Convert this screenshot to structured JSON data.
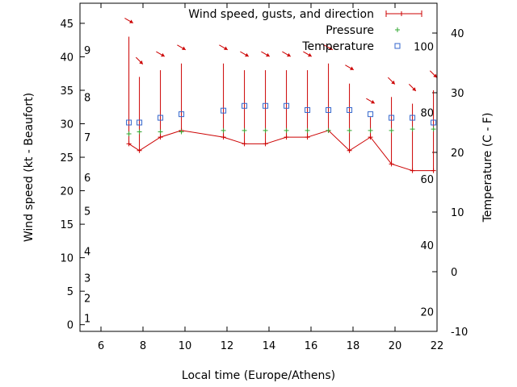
{
  "chart_data": {
    "type": "line",
    "title": "",
    "xlabel": "Local time (Europe/Athens)",
    "ylabel_left": "Wind speed (kt - Beaufort)",
    "ylabel_right": "Temperature (C - F)",
    "xlim": [
      5,
      22
    ],
    "ylim_left": [
      -1,
      48
    ],
    "ylim_right": [
      -10,
      45
    ],
    "x_ticks": [
      6,
      8,
      10,
      12,
      14,
      16,
      18,
      20,
      22
    ],
    "y_left_ticks": [
      0,
      5,
      10,
      15,
      20,
      25,
      30,
      35,
      40,
      45
    ],
    "y_right_ticks": [
      -10,
      0,
      10,
      20,
      30,
      40
    ],
    "beaufort_labels": [
      {
        "label": "1",
        "kt": 1
      },
      {
        "label": "2",
        "kt": 4
      },
      {
        "label": "3",
        "kt": 7
      },
      {
        "label": "4",
        "kt": 11
      },
      {
        "label": "5",
        "kt": 17
      },
      {
        "label": "6",
        "kt": 22
      },
      {
        "label": "7",
        "kt": 28
      },
      {
        "label": "8",
        "kt": 34
      },
      {
        "label": "9",
        "kt": 41
      }
    ],
    "fahrenheit_labels": [
      {
        "label": "20",
        "c": -6.67
      },
      {
        "label": "40",
        "c": 4.44
      },
      {
        "label": "60",
        "c": 15.56
      },
      {
        "label": "80",
        "c": 26.67
      },
      {
        "label": "100",
        "c": 37.78
      }
    ],
    "legend": {
      "position": "top-right",
      "entries": [
        "Wind speed, gusts, and direction",
        "Pressure",
        "Temperature"
      ]
    },
    "series": [
      {
        "name": "Wind speed, gusts, and direction",
        "axis": "left",
        "points": [
          {
            "x": 7.33,
            "speed": 27,
            "gust": 43,
            "dir_deg": 300
          },
          {
            "x": 7.83,
            "speed": 26,
            "gust": 37,
            "dir_deg": 315
          },
          {
            "x": 8.83,
            "speed": 28,
            "gust": 38,
            "dir_deg": 300
          },
          {
            "x": 9.83,
            "speed": 29,
            "gust": 39,
            "dir_deg": 300
          },
          {
            "x": 11.83,
            "speed": 28,
            "gust": 39,
            "dir_deg": 300
          },
          {
            "x": 12.83,
            "speed": 27,
            "gust": 38,
            "dir_deg": 300
          },
          {
            "x": 13.83,
            "speed": 27,
            "gust": 38,
            "dir_deg": 300
          },
          {
            "x": 14.83,
            "speed": 28,
            "gust": 38,
            "dir_deg": 300
          },
          {
            "x": 15.83,
            "speed": 28,
            "gust": 38,
            "dir_deg": 300
          },
          {
            "x": 16.83,
            "speed": 29,
            "gust": 39,
            "dir_deg": 300
          },
          {
            "x": 17.83,
            "speed": 26,
            "gust": 36,
            "dir_deg": 300
          },
          {
            "x": 18.83,
            "speed": 28,
            "gust": 31,
            "dir_deg": 300
          },
          {
            "x": 19.83,
            "speed": 24,
            "gust": 34,
            "dir_deg": 315
          },
          {
            "x": 20.83,
            "speed": 23,
            "gust": 33,
            "dir_deg": 315
          },
          {
            "x": 21.83,
            "speed": 23,
            "gust": 35,
            "dir_deg": 315
          }
        ]
      },
      {
        "name": "Pressure",
        "axis": "left",
        "points": [
          {
            "x": 7.33,
            "y": 28.5
          },
          {
            "x": 7.83,
            "y": 28.8
          },
          {
            "x": 8.83,
            "y": 28.8
          },
          {
            "x": 9.83,
            "y": 28.8
          },
          {
            "x": 11.83,
            "y": 29
          },
          {
            "x": 12.83,
            "y": 29
          },
          {
            "x": 13.83,
            "y": 29
          },
          {
            "x": 14.83,
            "y": 29
          },
          {
            "x": 15.83,
            "y": 29
          },
          {
            "x": 16.83,
            "y": 29
          },
          {
            "x": 17.83,
            "y": 29
          },
          {
            "x": 18.83,
            "y": 29
          },
          {
            "x": 19.83,
            "y": 29
          },
          {
            "x": 20.83,
            "y": 29.2
          },
          {
            "x": 21.83,
            "y": 29.2
          }
        ]
      },
      {
        "name": "Temperature",
        "axis": "right",
        "points": [
          {
            "x": 7.33,
            "y": 25
          },
          {
            "x": 7.83,
            "y": 25
          },
          {
            "x": 8.83,
            "y": 25.8
          },
          {
            "x": 9.83,
            "y": 26.4
          },
          {
            "x": 11.83,
            "y": 27
          },
          {
            "x": 12.83,
            "y": 27.8
          },
          {
            "x": 13.83,
            "y": 27.8
          },
          {
            "x": 14.83,
            "y": 27.8
          },
          {
            "x": 15.83,
            "y": 27.1
          },
          {
            "x": 16.83,
            "y": 27.1
          },
          {
            "x": 17.83,
            "y": 27.1
          },
          {
            "x": 18.83,
            "y": 26.4
          },
          {
            "x": 19.83,
            "y": 25.8
          },
          {
            "x": 20.83,
            "y": 25.8
          },
          {
            "x": 21.83,
            "y": 25
          }
        ]
      }
    ],
    "colors": {
      "wind": "#cc0000",
      "pressure": "#33aa33",
      "temperature": "#3366cc",
      "axis": "#000000"
    }
  }
}
